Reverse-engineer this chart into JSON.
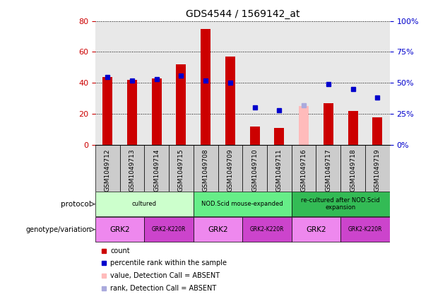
{
  "title": "GDS4544 / 1569142_at",
  "samples": [
    "GSM1049712",
    "GSM1049713",
    "GSM1049714",
    "GSM1049715",
    "GSM1049708",
    "GSM1049709",
    "GSM1049710",
    "GSM1049711",
    "GSM1049716",
    "GSM1049717",
    "GSM1049718",
    "GSM1049719"
  ],
  "counts": [
    44,
    42,
    43,
    52,
    75,
    57,
    12,
    11,
    25,
    27,
    22,
    18
  ],
  "percentile_ranks": [
    55,
    52,
    53,
    56,
    52,
    50,
    30,
    28,
    null,
    49,
    45,
    38
  ],
  "absent_value": [
    null,
    null,
    null,
    null,
    null,
    null,
    null,
    null,
    25,
    null,
    null,
    null
  ],
  "absent_rank": [
    null,
    null,
    null,
    null,
    null,
    null,
    null,
    null,
    32,
    null,
    null,
    null
  ],
  "bar_color_normal": "#cc0000",
  "bar_color_absent": "#ffbbbb",
  "dot_color_normal": "#0000cc",
  "dot_color_absent": "#aaaadd",
  "ylim_left": [
    0,
    80
  ],
  "ylim_right": [
    0,
    100
  ],
  "yticks_left": [
    0,
    20,
    40,
    60,
    80
  ],
  "ytick_labels_left": [
    "0",
    "20",
    "40",
    "60",
    "80"
  ],
  "yticks_right": [
    0,
    25,
    50,
    75,
    100
  ],
  "ytick_labels_right": [
    "0%",
    "25%",
    "50%",
    "75%",
    "100%"
  ],
  "protocols": [
    {
      "label": "cultured",
      "span": [
        0,
        4
      ],
      "color": "#ccffcc"
    },
    {
      "label": "NOD.Scid mouse-expanded",
      "span": [
        4,
        8
      ],
      "color": "#66ee88"
    },
    {
      "label": "re-cultured after NOD.Scid\nexpansion",
      "span": [
        8,
        12
      ],
      "color": "#33bb55"
    }
  ],
  "genotypes": [
    {
      "label": "GRK2",
      "span": [
        0,
        2
      ],
      "color": "#ee88ee"
    },
    {
      "label": "GRK2-K220R",
      "span": [
        2,
        4
      ],
      "color": "#cc44cc"
    },
    {
      "label": "GRK2",
      "span": [
        4,
        6
      ],
      "color": "#ee88ee"
    },
    {
      "label": "GRK2-K220R",
      "span": [
        6,
        8
      ],
      "color": "#cc44cc"
    },
    {
      "label": "GRK2",
      "span": [
        8,
        10
      ],
      "color": "#ee88ee"
    },
    {
      "label": "GRK2-K220R",
      "span": [
        10,
        12
      ],
      "color": "#cc44cc"
    }
  ],
  "legend_items": [
    {
      "label": "count",
      "color": "#cc0000"
    },
    {
      "label": "percentile rank within the sample",
      "color": "#0000cc"
    },
    {
      "label": "value, Detection Call = ABSENT",
      "color": "#ffbbbb"
    },
    {
      "label": "rank, Detection Call = ABSENT",
      "color": "#aaaadd"
    }
  ],
  "bar_width": 0.4,
  "tick_label_color_left": "#cc0000",
  "tick_label_color_right": "#0000cc",
  "bg_plot": "#e8e8e8",
  "bg_xtick": "#cccccc"
}
